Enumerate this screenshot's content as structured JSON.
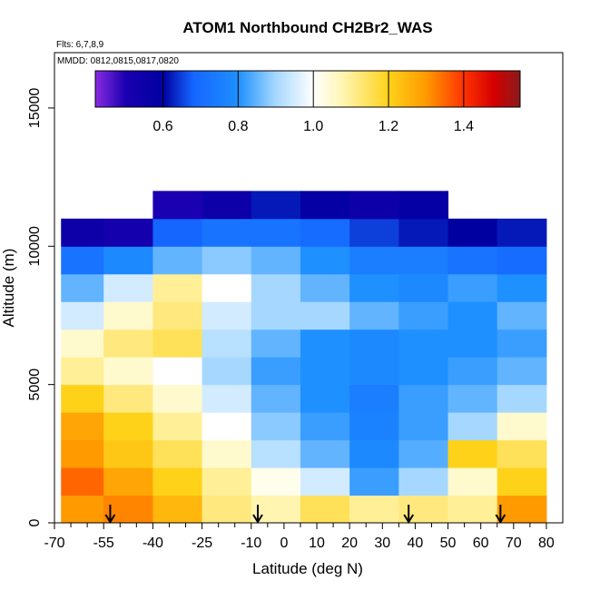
{
  "chart_data": {
    "type": "heatmap",
    "title": "ATOM1 Northbound CH2Br2_WAS",
    "subtitle_flights": "Flts: 6,7,8,9",
    "subtitle_dates": "MMDD: 0812,0815,0817,0820",
    "xlabel": "Latitude (deg N)",
    "ylabel": "Altitude (m)",
    "xlim": [
      -70,
      85
    ],
    "ylim": [
      0,
      17000
    ],
    "x_ticks": [
      {
        "value": -70,
        "label": "-70"
      },
      {
        "value": -55,
        "label": "-55"
      },
      {
        "value": -40,
        "label": "-40"
      },
      {
        "value": -25,
        "label": "-25"
      },
      {
        "value": -10,
        "label": "-10"
      },
      {
        "value": 0,
        "label": "0"
      },
      {
        "value": 10,
        "label": "10"
      },
      {
        "value": 20,
        "label": "20"
      },
      {
        "value": 30,
        "label": "30"
      },
      {
        "value": 40,
        "label": "40"
      },
      {
        "value": 50,
        "label": "50"
      },
      {
        "value": 60,
        "label": "60"
      },
      {
        "value": 70,
        "label": "70"
      },
      {
        "value": 80,
        "label": "80"
      }
    ],
    "x_minor_ticks": [
      -65,
      -60,
      -50,
      -45,
      -35,
      -30,
      -20,
      -15,
      -5,
      5,
      15,
      25,
      35,
      45,
      55,
      65,
      75
    ],
    "y_ticks": [
      {
        "value": 0,
        "label": "0"
      },
      {
        "value": 5000,
        "label": "5000"
      },
      {
        "value": 10000,
        "label": "10000"
      },
      {
        "value": 15000,
        "label": "15000"
      }
    ],
    "colorbar": {
      "range": [
        0.42,
        1.55
      ],
      "ticks": [
        {
          "value": 0.6,
          "label": "0.6"
        },
        {
          "value": 0.8,
          "label": "0.8"
        },
        {
          "value": 1.0,
          "label": "1.0"
        },
        {
          "value": 1.2,
          "label": "1.2"
        },
        {
          "value": 1.4,
          "label": "1.4"
        }
      ],
      "stops": [
        {
          "value": 0.42,
          "color": "#8a2be2"
        },
        {
          "value": 0.5,
          "color": "#1a00b0"
        },
        {
          "value": 0.6,
          "color": "#0000a0"
        },
        {
          "value": 0.68,
          "color": "#1565ff"
        },
        {
          "value": 0.8,
          "color": "#1e90ff"
        },
        {
          "value": 0.9,
          "color": "#a6d8ff"
        },
        {
          "value": 1.0,
          "color": "#ffffff"
        },
        {
          "value": 1.08,
          "color": "#fff5b0"
        },
        {
          "value": 1.2,
          "color": "#ffd21a"
        },
        {
          "value": 1.3,
          "color": "#ff9a00"
        },
        {
          "value": 1.4,
          "color": "#ff3300"
        },
        {
          "value": 1.48,
          "color": "#d40000"
        },
        {
          "value": 1.55,
          "color": "#8b1a1a"
        }
      ]
    },
    "arrow_latitudes": [
      -53,
      -8,
      38,
      66
    ],
    "grid": false,
    "lat_bands": [
      {
        "lat_min": -68,
        "lat_max": -55
      },
      {
        "lat_min": -55,
        "lat_max": -40
      },
      {
        "lat_min": -40,
        "lat_max": -25
      },
      {
        "lat_min": -25,
        "lat_max": -10
      },
      {
        "lat_min": -10,
        "lat_max": 5
      },
      {
        "lat_min": 5,
        "lat_max": 20
      },
      {
        "lat_min": 20,
        "lat_max": 35
      },
      {
        "lat_min": 35,
        "lat_max": 50
      },
      {
        "lat_min": 50,
        "lat_max": 65
      },
      {
        "lat_min": 65,
        "lat_max": 80
      }
    ],
    "alt_layers": [
      {
        "alt_min": 0,
        "alt_max": 1000,
        "values": [
          1.3,
          1.32,
          1.25,
          1.12,
          1.08,
          1.15,
          1.1,
          1.12,
          1.1,
          1.3
        ]
      },
      {
        "alt_min": 1000,
        "alt_max": 2000,
        "values": [
          1.35,
          1.28,
          1.2,
          1.1,
          1.02,
          0.95,
          0.82,
          0.9,
          1.05,
          1.2
        ]
      },
      {
        "alt_min": 2000,
        "alt_max": 3000,
        "values": [
          1.3,
          1.22,
          1.15,
          1.05,
          0.92,
          0.85,
          0.78,
          0.84,
          1.2,
          1.15
        ]
      },
      {
        "alt_min": 3000,
        "alt_max": 4000,
        "values": [
          1.28,
          1.2,
          1.1,
          1.0,
          0.88,
          0.82,
          0.76,
          0.82,
          0.9,
          1.05
        ]
      },
      {
        "alt_min": 4000,
        "alt_max": 5000,
        "values": [
          1.2,
          1.12,
          1.05,
          0.95,
          0.85,
          0.8,
          0.75,
          0.82,
          0.85,
          0.9
        ]
      },
      {
        "alt_min": 5000,
        "alt_max": 6000,
        "values": [
          1.1,
          1.05,
          1.0,
          0.9,
          0.82,
          0.8,
          0.78,
          0.8,
          0.82,
          0.85
        ]
      },
      {
        "alt_min": 6000,
        "alt_max": 7000,
        "values": [
          1.05,
          1.12,
          1.15,
          0.92,
          0.85,
          0.8,
          0.78,
          0.8,
          0.8,
          0.82
        ]
      },
      {
        "alt_min": 7000,
        "alt_max": 8000,
        "values": [
          0.95,
          1.05,
          1.12,
          0.95,
          0.9,
          0.9,
          0.85,
          0.82,
          0.8,
          0.85
        ]
      },
      {
        "alt_min": 8000,
        "alt_max": 9000,
        "values": [
          0.85,
          0.95,
          1.1,
          1.0,
          0.9,
          0.85,
          0.8,
          0.78,
          0.82,
          0.8
        ]
      },
      {
        "alt_min": 9000,
        "alt_max": 10000,
        "values": [
          0.72,
          0.78,
          0.85,
          0.88,
          0.85,
          0.8,
          0.75,
          0.75,
          0.72,
          0.7
        ]
      },
      {
        "alt_min": 10000,
        "alt_max": 11000,
        "values": [
          0.55,
          0.52,
          0.68,
          0.72,
          0.72,
          0.7,
          0.65,
          0.62,
          0.6,
          0.62
        ]
      },
      {
        "alt_min": 11000,
        "alt_max": 12000,
        "values": [
          null,
          null,
          0.5,
          0.55,
          0.62,
          0.58,
          0.55,
          0.58,
          null,
          null
        ]
      }
    ]
  }
}
